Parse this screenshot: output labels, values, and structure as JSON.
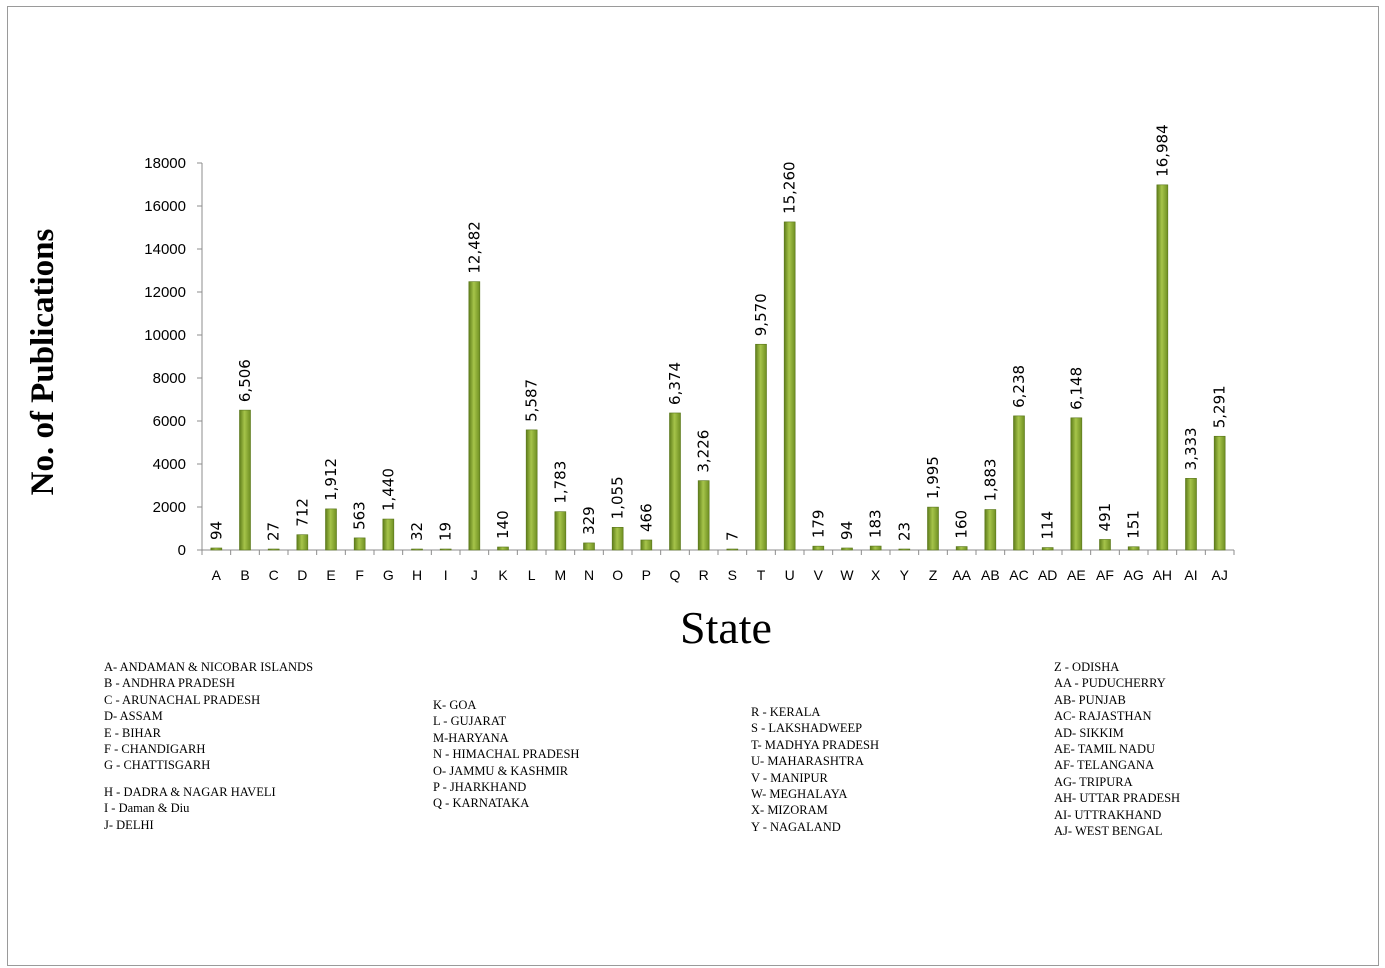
{
  "chart_data": {
    "type": "bar",
    "xlabel": "State",
    "ylabel": "No. of Publications",
    "ylim": [
      0,
      18000
    ],
    "yticks": [
      "0",
      "2000",
      "4000",
      "6000",
      "8000",
      "10000",
      "12000",
      "14000",
      "16000",
      "18000"
    ],
    "grid": false,
    "bar_color": "#7a9a2a",
    "categories": [
      "A",
      "B",
      "C",
      "D",
      "E",
      "F",
      "G",
      "H",
      "I",
      "J",
      "K",
      "L",
      "M",
      "N",
      "O",
      "P",
      "Q",
      "R",
      "S",
      "T",
      "U",
      "V",
      "W",
      "X",
      "Y",
      "Z",
      "AA",
      "AB",
      "AC",
      "AD",
      "AE",
      "AF",
      "AG",
      "AH",
      "AI",
      "AJ"
    ],
    "values": [
      94,
      6506,
      27,
      712,
      1912,
      563,
      1440,
      32,
      19,
      12482,
      140,
      5587,
      1783,
      329,
      1055,
      466,
      6374,
      3226,
      7,
      9570,
      15260,
      179,
      94,
      183,
      23,
      1995,
      160,
      1883,
      6238,
      114,
      6148,
      491,
      151,
      16984,
      3333,
      5291
    ],
    "data_labels": [
      "94",
      "6,506",
      "27",
      "712",
      "1,912",
      "563",
      "1,440",
      "32",
      "19",
      "12,482",
      "140",
      "5,587",
      "1,783",
      "329",
      "1,055",
      "466",
      "6,374",
      "3,226",
      "7",
      "9,570",
      "15,260",
      "179",
      "94",
      "183",
      "23",
      "1,995",
      "160",
      "1,883",
      "6,238",
      "114",
      "6,148",
      "491",
      "151",
      "16,984",
      "3,333",
      "5,291"
    ]
  },
  "legend": {
    "col1": [
      "A- ANDAMAN & NICOBAR ISLANDS",
      "B - ANDHRA PRADESH",
      "C - ARUNACHAL PRADESH",
      "D- ASSAM",
      "E - BIHAR",
      "F - CHANDIGARH",
      "G - CHATTISGARH"
    ],
    "col1b": [
      "H -  DADRA & NAGAR HAVELI",
      "I - Daman & Diu",
      "J- DELHI"
    ],
    "col2": [
      "K- GOA",
      "L - GUJARAT",
      "M-HARYANA",
      "N - HIMACHAL PRADESH",
      "O- JAMMU & KASHMIR",
      "P - JHARKHAND",
      "Q - KARNATAKA"
    ],
    "col3": [
      "R - KERALA",
      "S - LAKSHADWEEP",
      "T- MADHYA PRADESH",
      "U- MAHARASHTRA",
      "V - MANIPUR",
      "W- MEGHALAYA",
      "X- MIZORAM",
      "Y -  NAGALAND"
    ],
    "col4": [
      "Z -  ODISHA",
      "AA -  PUDUCHERRY",
      "AB- PUNJAB",
      "AC- RAJASTHAN",
      "AD- SIKKIM",
      "AE- TAMIL NADU",
      "AF- TELANGANA",
      "AG-  TRIPURA",
      "AH-  UTTAR PRADESH",
      "AI- UTTRAKHAND",
      "AJ- WEST BENGAL"
    ]
  }
}
